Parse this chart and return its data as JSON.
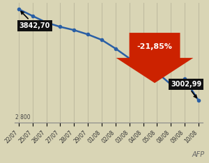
{
  "dates": [
    "22/07",
    "25/07",
    "26/07",
    "27/07",
    "28/07",
    "29/07",
    "01/08",
    "02/08",
    "03/08",
    "04/08",
    "05/08",
    "08/08",
    "09/08",
    "10/08"
  ],
  "values": [
    3842.7,
    3780.0,
    3720.0,
    3680.0,
    3650.0,
    3610.0,
    3560.0,
    3480.0,
    3390.0,
    3290.0,
    3260.0,
    3150.0,
    3200.0,
    3002.99
  ],
  "ymin": 2800,
  "ymax": 3900,
  "first_label": "3842,70",
  "last_label": "3002,99",
  "pct_change": "-21,85%",
  "bg_color": "#d9d5b5",
  "line_color": "#2a5fa5",
  "arrow_color": "#cc2200",
  "label_bg": "#111111",
  "label_fg": "#ffffff",
  "grid_color": "#b8b49a",
  "bottom_label": "2 800",
  "watermark": "AFP"
}
